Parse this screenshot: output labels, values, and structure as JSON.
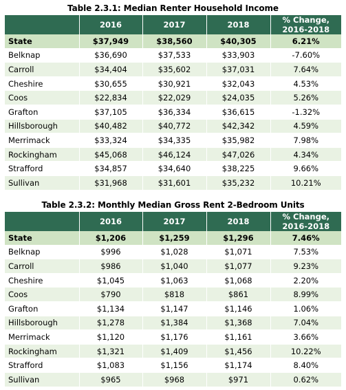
{
  "tables": [
    {
      "title": "Table 2.3.1: Median Renter Household Income",
      "headers": [
        "",
        "2016",
        "2017",
        "2018",
        "% Change, 2016-2018"
      ],
      "rows": [
        {
          "name": "State",
          "v2016": "$37,949",
          "v2017": "$38,560",
          "v2018": "$40,305",
          "change": "6.21%"
        },
        {
          "name": "Belknap",
          "v2016": "$36,690",
          "v2017": "$37,533",
          "v2018": "$33,903",
          "change": "-7.60%"
        },
        {
          "name": "Carroll",
          "v2016": "$34,404",
          "v2017": "$35,602",
          "v2018": "$37,031",
          "change": "7.64%"
        },
        {
          "name": "Cheshire",
          "v2016": "$30,655",
          "v2017": "$30,921",
          "v2018": "$32,043",
          "change": "4.53%"
        },
        {
          "name": "Coos",
          "v2016": "$22,834",
          "v2017": "$22,029",
          "v2018": "$24,035",
          "change": "5.26%"
        },
        {
          "name": "Grafton",
          "v2016": "$37,105",
          "v2017": "$36,334",
          "v2018": "$36,615",
          "change": "-1.32%"
        },
        {
          "name": "Hillsborough",
          "v2016": "$40,482",
          "v2017": "$40,772",
          "v2018": "$42,342",
          "change": "4.59%"
        },
        {
          "name": "Merrimack",
          "v2016": "$33,324",
          "v2017": "$34,335",
          "v2018": "$35,982",
          "change": "7.98%"
        },
        {
          "name": "Rockingham",
          "v2016": "$45,068",
          "v2017": "$46,124",
          "v2018": "$47,026",
          "change": "4.34%"
        },
        {
          "name": "Strafford",
          "v2016": "$34,857",
          "v2017": "$34,640",
          "v2018": "$38,225",
          "change": "9.66%"
        },
        {
          "name": "Sullivan",
          "v2016": "$31,968",
          "v2017": "$31,601",
          "v2018": "$35,232",
          "change": "10.21%"
        }
      ]
    },
    {
      "title": "Table 2.3.2: Monthly Median Gross Rent 2-Bedroom Units",
      "headers": [
        "",
        "2016",
        "2017",
        "2018",
        "% Change, 2016-2018"
      ],
      "rows": [
        {
          "name": "State",
          "v2016": "$1,206",
          "v2017": "$1,259",
          "v2018": "$1,296",
          "change": "7.46%"
        },
        {
          "name": "Belknap",
          "v2016": "$996",
          "v2017": "$1,028",
          "v2018": "$1,071",
          "change": "7.53%"
        },
        {
          "name": "Carroll",
          "v2016": "$986",
          "v2017": "$1,040",
          "v2018": "$1,077",
          "change": "9.23%"
        },
        {
          "name": "Cheshire",
          "v2016": "$1,045",
          "v2017": "$1,063",
          "v2018": "$1,068",
          "change": "2.20%"
        },
        {
          "name": "Coos",
          "v2016": "$790",
          "v2017": "$818",
          "v2018": "$861",
          "change": "8.99%"
        },
        {
          "name": "Grafton",
          "v2016": "$1,134",
          "v2017": "$1,147",
          "v2018": "$1,146",
          "change": "1.06%"
        },
        {
          "name": "Hillsborough",
          "v2016": "$1,278",
          "v2017": "$1,384",
          "v2018": "$1,368",
          "change": "7.04%"
        },
        {
          "name": "Merrimack",
          "v2016": "$1,120",
          "v2017": "$1,176",
          "v2018": "$1,161",
          "change": "3.66%"
        },
        {
          "name": "Rockingham",
          "v2016": "$1,321",
          "v2017": "$1,409",
          "v2018": "$1,456",
          "change": "10.22%"
        },
        {
          "name": "Strafford",
          "v2016": "$1,083",
          "v2017": "$1,156",
          "v2018": "$1,174",
          "change": "8.40%"
        },
        {
          "name": "Sullivan",
          "v2016": "$965",
          "v2017": "$968",
          "v2018": "$971",
          "change": "0.62%"
        }
      ]
    }
  ],
  "colors": {
    "header_bg": "#2f6b52",
    "state_row_bg": "#cfe3c3",
    "stripe_bg": "#e9f2e3"
  }
}
